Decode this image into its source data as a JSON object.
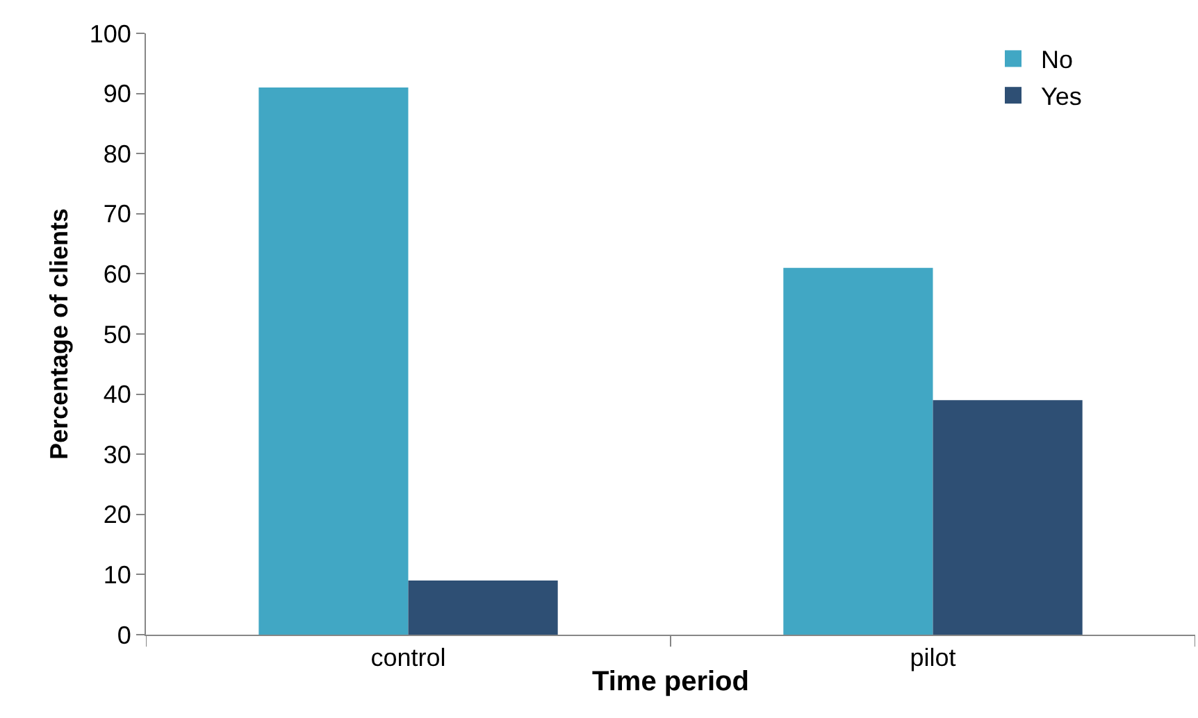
{
  "chart_data": {
    "type": "bar",
    "xlabel": "Time period",
    "ylabel": "Percentage of clients",
    "categories": [
      "control",
      "pilot"
    ],
    "series": [
      {
        "name": "No",
        "color": "#41a7c4",
        "values": [
          91,
          61
        ]
      },
      {
        "name": "Yes",
        "color": "#2e4f74",
        "values": [
          9,
          39
        ]
      }
    ],
    "ylim": [
      0,
      100
    ],
    "yticks": [
      0,
      10,
      20,
      30,
      40,
      50,
      60,
      70,
      80,
      90,
      100
    ],
    "grid": false,
    "legend": "top right"
  }
}
